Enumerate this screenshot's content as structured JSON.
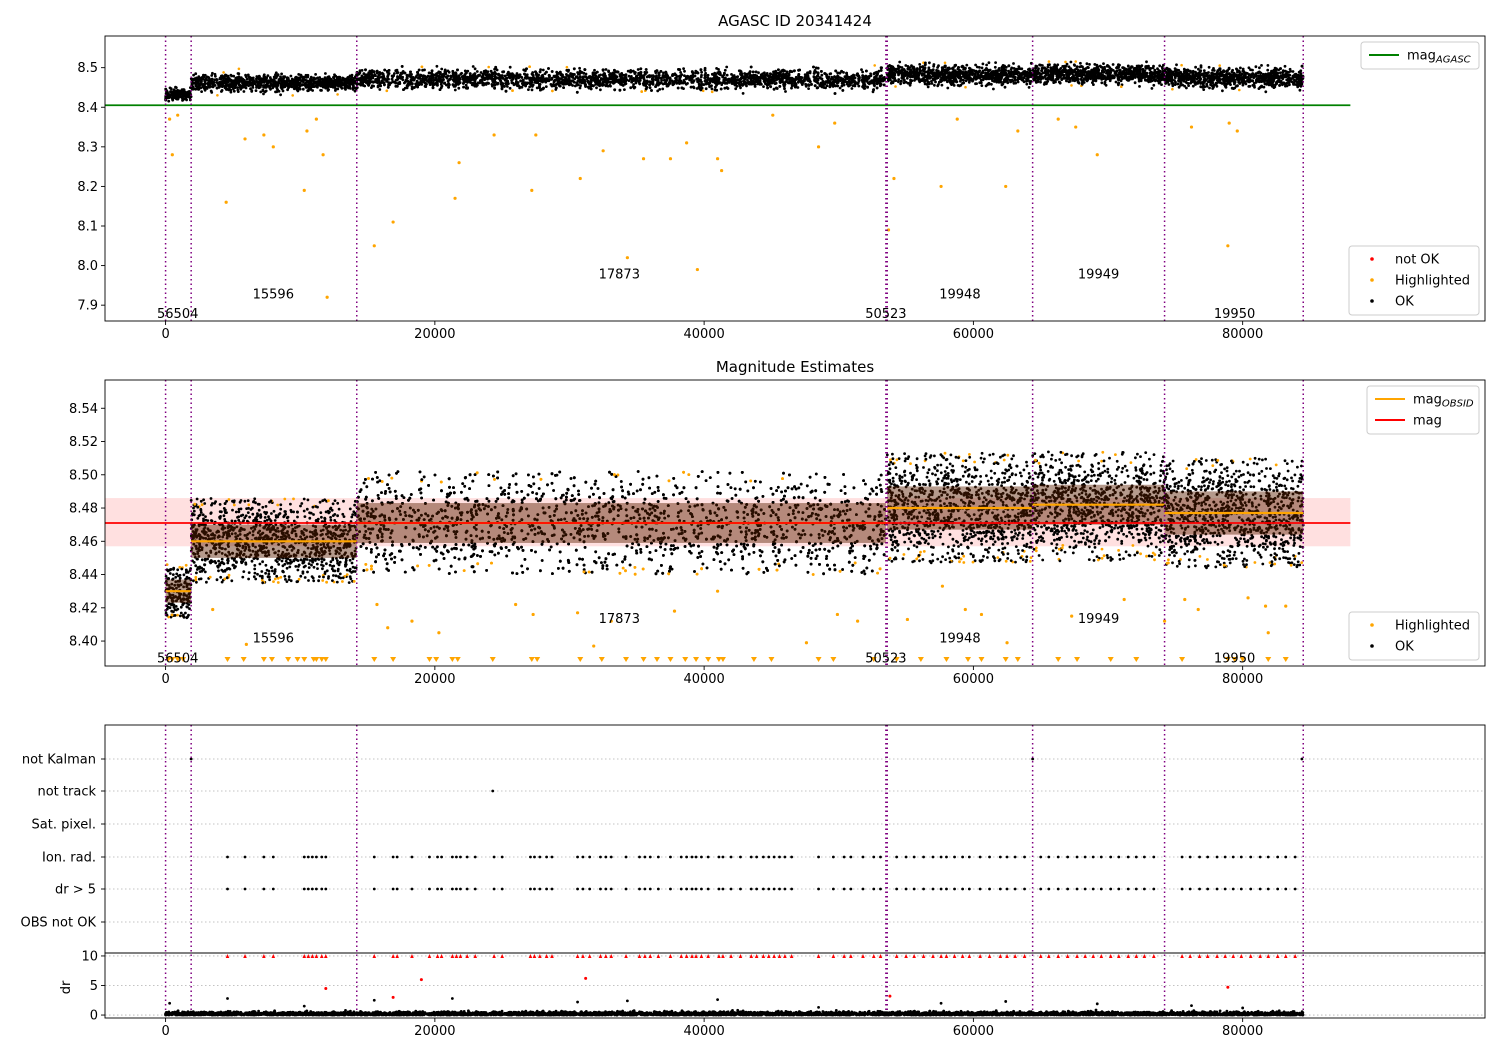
{
  "chart_data": [
    {
      "type": "scatter",
      "title": "AGASC ID 20341424",
      "xlim": [
        -4500,
        98000
      ],
      "ylim": [
        7.86,
        8.58
      ],
      "xticks": [
        0,
        20000,
        40000,
        60000,
        80000
      ],
      "yticks": [
        7.9,
        8.0,
        8.1,
        8.2,
        8.3,
        8.4,
        8.5
      ],
      "reference_line": {
        "name": "mag_AGASC",
        "label_main": "mag",
        "label_sub": "AGASC",
        "y": 8.405,
        "x_range": [
          -4500,
          88000
        ],
        "color": "#008000"
      },
      "obs_boundaries": [
        0,
        1900,
        14200,
        53500,
        53600,
        64400,
        74200,
        84500
      ],
      "obsid_labels": [
        {
          "text": "56504",
          "x": 900,
          "y": 7.88
        },
        {
          "text": "15596",
          "x": 8000,
          "y": 7.93
        },
        {
          "text": "17873",
          "x": 33700,
          "y": 7.98
        },
        {
          "text": "50523",
          "x": 53500,
          "y": 7.88
        },
        {
          "text": "19948",
          "x": 59000,
          "y": 7.93
        },
        {
          "text": "19949",
          "x": 69300,
          "y": 7.98
        },
        {
          "text": "19950",
          "x": 79400,
          "y": 7.88
        }
      ],
      "segments": [
        {
          "x0": 0,
          "x1": 1900,
          "mean": 8.432,
          "spread": 0.008
        },
        {
          "x0": 1900,
          "x1": 14200,
          "mean": 8.462,
          "spread": 0.01
        },
        {
          "x0": 14200,
          "x1": 53500,
          "mean": 8.471,
          "spread": 0.012
        },
        {
          "x0": 53600,
          "x1": 64400,
          "mean": 8.482,
          "spread": 0.012
        },
        {
          "x0": 64400,
          "x1": 74200,
          "mean": 8.484,
          "spread": 0.012
        },
        {
          "x0": 74200,
          "x1": 84500,
          "mean": 8.475,
          "spread": 0.012
        }
      ],
      "outliers": [
        {
          "x": 300,
          "y": 8.37
        },
        {
          "x": 500,
          "y": 8.28
        },
        {
          "x": 900,
          "y": 8.38
        },
        {
          "x": 4500,
          "y": 8.16
        },
        {
          "x": 5900,
          "y": 8.32
        },
        {
          "x": 7300,
          "y": 8.33
        },
        {
          "x": 8000,
          "y": 8.3
        },
        {
          "x": 10300,
          "y": 8.19
        },
        {
          "x": 10500,
          "y": 8.34
        },
        {
          "x": 11200,
          "y": 8.37
        },
        {
          "x": 11700,
          "y": 8.28
        },
        {
          "x": 12000,
          "y": 7.92
        },
        {
          "x": 15500,
          "y": 8.05
        },
        {
          "x": 16900,
          "y": 8.11
        },
        {
          "x": 21500,
          "y": 8.17
        },
        {
          "x": 21800,
          "y": 8.26
        },
        {
          "x": 24400,
          "y": 8.33
        },
        {
          "x": 27200,
          "y": 8.19
        },
        {
          "x": 27500,
          "y": 8.33
        },
        {
          "x": 30800,
          "y": 8.22
        },
        {
          "x": 32500,
          "y": 8.29
        },
        {
          "x": 34300,
          "y": 8.02
        },
        {
          "x": 35500,
          "y": 8.27
        },
        {
          "x": 37500,
          "y": 8.27
        },
        {
          "x": 38700,
          "y": 8.31
        },
        {
          "x": 39500,
          "y": 7.99
        },
        {
          "x": 41000,
          "y": 8.27
        },
        {
          "x": 41300,
          "y": 8.24
        },
        {
          "x": 45100,
          "y": 8.38
        },
        {
          "x": 48500,
          "y": 8.3
        },
        {
          "x": 49700,
          "y": 8.36
        },
        {
          "x": 53700,
          "y": 8.09
        },
        {
          "x": 54100,
          "y": 8.22
        },
        {
          "x": 57600,
          "y": 8.2
        },
        {
          "x": 58800,
          "y": 8.37
        },
        {
          "x": 62400,
          "y": 8.2
        },
        {
          "x": 63300,
          "y": 8.34
        },
        {
          "x": 66300,
          "y": 8.37
        },
        {
          "x": 67600,
          "y": 8.35
        },
        {
          "x": 69200,
          "y": 8.28
        },
        {
          "x": 76200,
          "y": 8.35
        },
        {
          "x": 78900,
          "y": 8.05
        },
        {
          "x": 79000,
          "y": 8.36
        },
        {
          "x": 79600,
          "y": 8.34
        }
      ],
      "legends": [
        {
          "placement": "upper-right",
          "entries": [
            {
              "marker": "line",
              "color": "#008000",
              "label": "mag",
              "sub": "AGASC"
            }
          ]
        },
        {
          "placement": "lower-right",
          "entries": [
            {
              "marker": "dot",
              "color": "#ff0000",
              "label": "not OK"
            },
            {
              "marker": "dot",
              "color": "#ffa500",
              "label": "Highlighted"
            },
            {
              "marker": "dot",
              "color": "#000000",
              "label": "OK"
            }
          ]
        }
      ]
    },
    {
      "type": "scatter",
      "title": "Magnitude Estimates",
      "xlim": [
        -4500,
        98000
      ],
      "ylim": [
        8.385,
        8.557
      ],
      "xticks": [
        0,
        20000,
        40000,
        60000,
        80000
      ],
      "yticks": [
        8.4,
        8.42,
        8.44,
        8.46,
        8.48,
        8.5,
        8.52,
        8.54
      ],
      "mag_line": {
        "name": "mag",
        "y": 8.471,
        "band": [
          8.457,
          8.486
        ],
        "x_range": [
          -4500,
          88000
        ],
        "color": "#ff0000"
      },
      "obsid_mags": [
        {
          "x0": 0,
          "x1": 1900,
          "mag": 8.43,
          "sd": 0.007,
          "y_lo": 8.414,
          "y_hi": 8.446
        },
        {
          "x0": 1900,
          "x1": 14200,
          "mag": 8.46,
          "sd": 0.01,
          "y_lo": 8.435,
          "y_hi": 8.486
        },
        {
          "x0": 14200,
          "x1": 53500,
          "mag": 8.471,
          "sd": 0.012,
          "y_lo": 8.44,
          "y_hi": 8.502
        },
        {
          "x0": 53600,
          "x1": 64400,
          "mag": 8.48,
          "sd": 0.013,
          "y_lo": 8.447,
          "y_hi": 8.513
        },
        {
          "x0": 64400,
          "x1": 74200,
          "mag": 8.482,
          "sd": 0.012,
          "y_lo": 8.448,
          "y_hi": 8.514
        },
        {
          "x0": 74200,
          "x1": 84500,
          "mag": 8.477,
          "sd": 0.013,
          "y_lo": 8.444,
          "y_hi": 8.51
        }
      ],
      "obsid_labels": [
        {
          "text": "56504",
          "x": 900,
          "y": 8.39
        },
        {
          "text": "15596",
          "x": 8000,
          "y": 8.402
        },
        {
          "text": "17873",
          "x": 33700,
          "y": 8.414
        },
        {
          "text": "50523",
          "x": 53500,
          "y": 8.39
        },
        {
          "text": "19948",
          "x": 59000,
          "y": 8.402
        },
        {
          "text": "19949",
          "x": 69300,
          "y": 8.414
        },
        {
          "text": "19950",
          "x": 79400,
          "y": 8.39
        }
      ],
      "outliers": [
        {
          "x": 3500,
          "y": 8.419
        },
        {
          "x": 6000,
          "y": 8.398
        },
        {
          "x": 15700,
          "y": 8.422
        },
        {
          "x": 16500,
          "y": 8.408
        },
        {
          "x": 18300,
          "y": 8.412
        },
        {
          "x": 20300,
          "y": 8.405
        },
        {
          "x": 26000,
          "y": 8.422
        },
        {
          "x": 27300,
          "y": 8.416
        },
        {
          "x": 30600,
          "y": 8.417
        },
        {
          "x": 31800,
          "y": 8.397
        },
        {
          "x": 33100,
          "y": 8.412
        },
        {
          "x": 37800,
          "y": 8.418
        },
        {
          "x": 41000,
          "y": 8.43
        },
        {
          "x": 47600,
          "y": 8.399
        },
        {
          "x": 49900,
          "y": 8.416
        },
        {
          "x": 51400,
          "y": 8.412
        },
        {
          "x": 55100,
          "y": 8.413
        },
        {
          "x": 57700,
          "y": 8.433
        },
        {
          "x": 59400,
          "y": 8.419
        },
        {
          "x": 60600,
          "y": 8.416
        },
        {
          "x": 62500,
          "y": 8.399
        },
        {
          "x": 67300,
          "y": 8.415
        },
        {
          "x": 71200,
          "y": 8.425
        },
        {
          "x": 74200,
          "y": 8.412
        },
        {
          "x": 75700,
          "y": 8.425
        },
        {
          "x": 76700,
          "y": 8.419
        },
        {
          "x": 80400,
          "y": 8.426
        },
        {
          "x": 81700,
          "y": 8.421
        },
        {
          "x": 81900,
          "y": 8.405
        },
        {
          "x": 83200,
          "y": 8.421
        }
      ],
      "low_markers_x": [
        200,
        500,
        900,
        1300,
        4600,
        5800,
        7300,
        7900,
        9100,
        9800,
        10300,
        11000,
        11200,
        11600,
        11900,
        15500,
        16900,
        19600,
        20100,
        21300,
        21700,
        24300,
        27200,
        27600,
        30800,
        32400,
        34200,
        35500,
        36500,
        37500,
        38600,
        39400,
        40300,
        41100,
        41400,
        43700,
        45000,
        48500,
        49600,
        52600,
        54300,
        56100,
        58000,
        59600,
        60600,
        62400,
        63300,
        66300,
        67700,
        70200,
        72100,
        75500,
        78900,
        79400,
        80000,
        81900,
        83200
      ],
      "legends": [
        {
          "placement": "upper-right",
          "entries": [
            {
              "marker": "line",
              "color": "#ffa500",
              "label": "mag",
              "sub": "OBSID"
            },
            {
              "marker": "line",
              "color": "#ff0000",
              "label": "mag"
            }
          ]
        },
        {
          "placement": "lower-right",
          "entries": [
            {
              "marker": "dot",
              "color": "#ffa500",
              "label": "Highlighted"
            },
            {
              "marker": "dot",
              "color": "#000000",
              "label": "OK"
            }
          ]
        }
      ]
    },
    {
      "type": "scatter",
      "title": "",
      "xlim": [
        -4500,
        98000
      ],
      "categories": [
        "not Kalman",
        "not track",
        "Sat. pixel.",
        "Ion. rad.",
        "dr > 5",
        "OBS not OK"
      ],
      "flag_points": {
        "not Kalman": [
          1900,
          64400,
          84400
        ],
        "not track": [
          24300
        ],
        "Sat. pixel.": [],
        "Ion. rad.": [
          4600,
          5900,
          7300,
          8000,
          10300,
          10600,
          10900,
          11200,
          11600,
          11900,
          15500,
          16900,
          17200,
          18300,
          19600,
          20200,
          20500,
          21300,
          21600,
          21900,
          22400,
          23000,
          24400,
          25000,
          27100,
          27400,
          27800,
          28300,
          28700,
          30600,
          31000,
          31500,
          32300,
          32700,
          33100,
          34200,
          35200,
          35600,
          36000,
          36600,
          37500,
          38300,
          38700,
          39100,
          39400,
          39800,
          40300,
          41100,
          41400,
          42000,
          42700,
          43500,
          43900,
          44400,
          44800,
          45200,
          45600,
          46000,
          46500,
          48500,
          49600,
          50400,
          50900,
          51800,
          52600,
          53100,
          54300,
          55000,
          55600,
          56300,
          57000,
          57600,
          58000,
          58600,
          59200,
          59700,
          60500,
          61200,
          62000,
          62500,
          63100,
          63800,
          65000,
          65600,
          66300,
          67000,
          67700,
          68300,
          68900,
          69500,
          70200,
          70800,
          71500,
          72100,
          72700,
          73400,
          75500,
          76100,
          76800,
          77400,
          78100,
          78700,
          79300,
          79900,
          80600,
          81300,
          81900,
          82600,
          83200,
          83900
        ],
        "dr > 5": [
          4600,
          5900,
          7300,
          8000,
          10300,
          10600,
          10900,
          11200,
          11600,
          11900,
          15500,
          16900,
          17200,
          18300,
          19600,
          20200,
          20500,
          21300,
          21600,
          21900,
          22400,
          23000,
          24400,
          25000,
          27100,
          27400,
          27800,
          28300,
          28700,
          30600,
          31000,
          31500,
          32300,
          32700,
          33100,
          34200,
          35200,
          35600,
          36000,
          36600,
          37500,
          38300,
          38700,
          39100,
          39400,
          39800,
          40300,
          41100,
          41400,
          42000,
          42700,
          43500,
          43900,
          44400,
          44800,
          45200,
          45600,
          46000,
          46500,
          48500,
          49600,
          50400,
          50900,
          51800,
          52600,
          53100,
          54300,
          55000,
          55600,
          56300,
          57000,
          57600,
          58000,
          58600,
          59200,
          59700,
          60500,
          61200,
          62000,
          62500,
          63100,
          63800,
          65000,
          65600,
          66300,
          67000,
          67700,
          68300,
          68900,
          69500,
          70200,
          70800,
          71500,
          72100,
          72700,
          73400,
          75500,
          76100,
          76800,
          77400,
          78100,
          78700,
          79300,
          79900,
          80600,
          81300,
          81900,
          82600,
          83200,
          83900
        ],
        "OBS not OK": []
      },
      "grid": "horizontal-dotted"
    },
    {
      "type": "scatter",
      "title": "",
      "ylabel": "dr",
      "xlim": [
        -4500,
        98000
      ],
      "ylim": [
        -0.5,
        10.5
      ],
      "xticks": [
        0,
        20000,
        40000,
        60000,
        80000
      ],
      "yticks": [
        0,
        5,
        10
      ],
      "clipped_markers_x": [
        4600,
        5900,
        7300,
        8000,
        10300,
        10600,
        10900,
        11200,
        11600,
        11900,
        15500,
        16900,
        17200,
        18300,
        19600,
        20200,
        20500,
        21300,
        21600,
        21900,
        22400,
        23000,
        24400,
        25000,
        27100,
        27400,
        27800,
        28300,
        28700,
        30600,
        31000,
        31500,
        32300,
        32700,
        33100,
        34200,
        35200,
        35600,
        36000,
        36600,
        37500,
        38300,
        38700,
        39100,
        39400,
        39800,
        40300,
        41100,
        41400,
        42000,
        42700,
        43500,
        43900,
        44400,
        44800,
        45200,
        45600,
        46000,
        46500,
        48500,
        49600,
        50400,
        50900,
        51800,
        52600,
        53100,
        54300,
        55000,
        55600,
        56300,
        57000,
        57600,
        58000,
        58600,
        59200,
        59700,
        60500,
        61200,
        62000,
        62500,
        63100,
        63800,
        65000,
        65600,
        66300,
        67000,
        67700,
        68300,
        68900,
        69500,
        70200,
        70800,
        71500,
        72100,
        72700,
        73400,
        75500,
        76100,
        76800,
        77400,
        78100,
        78700,
        79300,
        79900,
        80600,
        81300,
        81900,
        82600,
        83200,
        83900
      ],
      "red_points": [
        {
          "x": 11900,
          "y": 4.5
        },
        {
          "x": 16900,
          "y": 3.0
        },
        {
          "x": 19000,
          "y": 6.0
        },
        {
          "x": 31200,
          "y": 6.2
        },
        {
          "x": 53800,
          "y": 3.2
        },
        {
          "x": 78900,
          "y": 4.7
        }
      ],
      "black_points": [
        {
          "x": 300,
          "y": 2.0
        },
        {
          "x": 4600,
          "y": 2.8
        },
        {
          "x": 10300,
          "y": 1.5
        },
        {
          "x": 15500,
          "y": 2.5
        },
        {
          "x": 21300,
          "y": 2.8
        },
        {
          "x": 30600,
          "y": 2.2
        },
        {
          "x": 34300,
          "y": 2.4
        },
        {
          "x": 41000,
          "y": 2.6
        },
        {
          "x": 48500,
          "y": 1.3
        },
        {
          "x": 57600,
          "y": 2.0
        },
        {
          "x": 62400,
          "y": 2.3
        },
        {
          "x": 69200,
          "y": 1.9
        },
        {
          "x": 76200,
          "y": 1.6
        },
        {
          "x": 80000,
          "y": 1.2
        }
      ],
      "data_range": [
        0,
        84500
      ]
    }
  ]
}
